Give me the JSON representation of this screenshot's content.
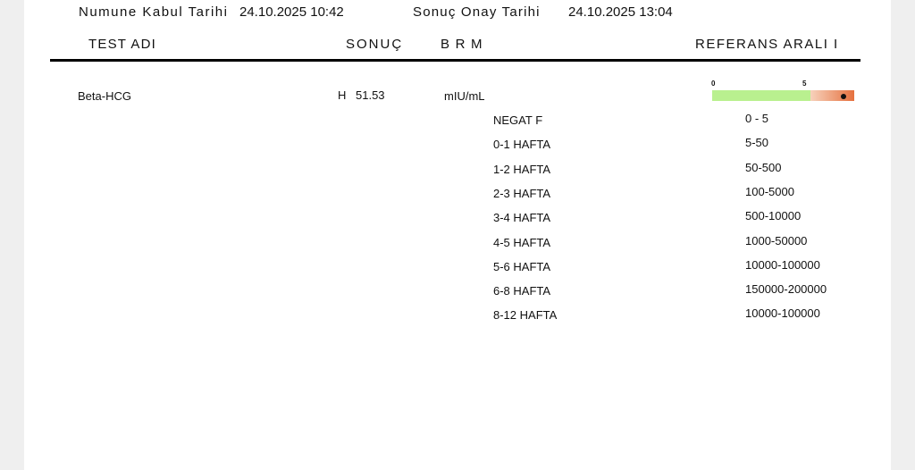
{
  "header": {
    "sample_label": "Numune Kabul Tarihi",
    "sample_date": "24.10.2025 10:42",
    "approve_label": "Sonuç Onay Tarihi",
    "approve_date": "24.10.2025 13:04"
  },
  "columns": {
    "test": "TEST ADI",
    "result": "SONUÇ",
    "unit": "B R M",
    "reference": "REFERANS ARALI   I"
  },
  "test": {
    "name": "Beta-HCG",
    "flag": "H",
    "value": "51.53",
    "unit": "mIU/mL",
    "gauge": {
      "min_label": "0",
      "max_label": "5",
      "low": 0,
      "high": 5,
      "value": 51.53,
      "normal_color": "#b9f08f",
      "high_color": "#e5703e"
    }
  },
  "references": [
    {
      "label": "NEGAT F",
      "range": "0 - 5"
    },
    {
      "label": "0-1 HAFTA",
      "range": "5-50"
    },
    {
      "label": "1-2 HAFTA",
      "range": "50-500"
    },
    {
      "label": "2-3 HAFTA",
      "range": "100-5000"
    },
    {
      "label": "3-4 HAFTA",
      "range": "500-10000"
    },
    {
      "label": "4-5 HAFTA",
      "range": "1000-50000"
    },
    {
      "label": "5-6 HAFTA",
      "range": "10000-100000"
    },
    {
      "label": "6-8 HAFTA",
      "range": "150000-200000"
    },
    {
      "label": "8-12 HAFTA",
      "range": "10000-100000"
    }
  ]
}
